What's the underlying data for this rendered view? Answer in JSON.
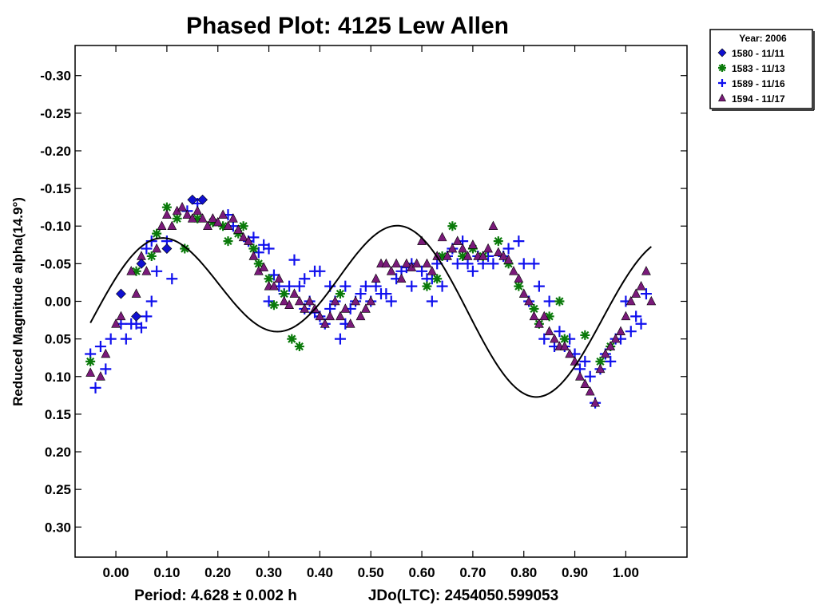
{
  "chart_data": {
    "type": "scatter",
    "title": "Phased Plot: 4125 Lew Allen",
    "ylabel": "Reduced Magnitude alpha(14.9°)",
    "xlim": [
      -0.08,
      1.12
    ],
    "ylim": [
      0.34,
      -0.34
    ],
    "y_inverted": true,
    "x_ticks": [
      0.0,
      0.1,
      0.2,
      0.3,
      0.4,
      0.5,
      0.6,
      0.7,
      0.8,
      0.9,
      1.0
    ],
    "x_tick_labels": [
      "0.00",
      "0.10",
      "0.20",
      "0.30",
      "0.40",
      "0.50",
      "0.60",
      "0.70",
      "0.80",
      "0.90",
      "1.00"
    ],
    "y_ticks": [
      -0.3,
      -0.25,
      -0.2,
      -0.15,
      -0.1,
      -0.05,
      0.0,
      0.05,
      0.1,
      0.15,
      0.2,
      0.25,
      0.3
    ],
    "y_tick_labels": [
      "-0.30",
      "-0.25",
      "-0.20",
      "-0.15",
      "-0.10",
      "-0.05",
      "0.00",
      "0.05",
      "0.10",
      "0.15",
      "0.20",
      "0.25",
      "0.30"
    ],
    "grid": false,
    "legend": {
      "placement": "top-right-outside",
      "title": "Year: 2006",
      "entries": [
        "1580 - 11/11",
        "1583 - 11/13",
        "1589 - 11/16",
        "1594 - 11/17"
      ]
    },
    "series": [
      {
        "name": "1580 - 11/11",
        "marker": "diamond",
        "color": "#1010d0",
        "points": [
          [
            0.01,
            -0.01
          ],
          [
            0.05,
            -0.05
          ],
          [
            0.1,
            -0.07
          ],
          [
            0.15,
            -0.135
          ],
          [
            0.17,
            -0.135
          ],
          [
            0.04,
            0.02
          ]
        ]
      },
      {
        "name": "1583 - 11/13",
        "marker": "asterisk",
        "color": "#0a7a0a",
        "points": [
          [
            -0.05,
            0.08
          ],
          [
            0.04,
            -0.04
          ],
          [
            0.07,
            -0.06
          ],
          [
            0.08,
            -0.09
          ],
          [
            0.1,
            -0.125
          ],
          [
            0.12,
            -0.11
          ],
          [
            0.135,
            -0.07
          ],
          [
            0.16,
            -0.11
          ],
          [
            0.19,
            -0.105
          ],
          [
            0.21,
            -0.1
          ],
          [
            0.22,
            -0.08
          ],
          [
            0.24,
            -0.09
          ],
          [
            0.25,
            -0.1
          ],
          [
            0.27,
            -0.07
          ],
          [
            0.28,
            -0.05
          ],
          [
            0.3,
            -0.03
          ],
          [
            0.31,
            0.005
          ],
          [
            0.33,
            -0.01
          ],
          [
            0.345,
            0.05
          ],
          [
            0.36,
            0.06
          ],
          [
            0.44,
            -0.01
          ],
          [
            0.61,
            -0.02
          ],
          [
            0.63,
            -0.03
          ],
          [
            0.64,
            -0.06
          ],
          [
            0.66,
            -0.1
          ],
          [
            0.68,
            -0.06
          ],
          [
            0.7,
            -0.07
          ],
          [
            0.72,
            -0.06
          ],
          [
            0.75,
            -0.08
          ],
          [
            0.77,
            -0.05
          ],
          [
            0.79,
            -0.02
          ],
          [
            0.82,
            0.01
          ],
          [
            0.83,
            0.03
          ],
          [
            0.85,
            0.02
          ],
          [
            0.87,
            0.0
          ],
          [
            0.88,
            0.05
          ],
          [
            0.92,
            0.045
          ],
          [
            0.95,
            0.08
          ],
          [
            0.97,
            0.06
          ]
        ]
      },
      {
        "name": "1589 - 11/16",
        "marker": "plus",
        "color": "#1010ee",
        "points": [
          [
            -0.05,
            0.07
          ],
          [
            -0.04,
            0.115
          ],
          [
            -0.03,
            0.06
          ],
          [
            -0.02,
            0.09
          ],
          [
            -0.01,
            0.05
          ],
          [
            0.01,
            0.03
          ],
          [
            0.02,
            0.05
          ],
          [
            0.03,
            0.03
          ],
          [
            0.04,
            0.03
          ],
          [
            0.05,
            0.035
          ],
          [
            0.06,
            0.02
          ],
          [
            0.06,
            -0.07
          ],
          [
            0.07,
            -0.08
          ],
          [
            0.07,
            0.0
          ],
          [
            0.08,
            -0.04
          ],
          [
            0.1,
            -0.08
          ],
          [
            0.11,
            -0.03
          ],
          [
            0.14,
            -0.12
          ],
          [
            0.16,
            -0.13
          ],
          [
            0.22,
            -0.115
          ],
          [
            0.23,
            -0.1
          ],
          [
            0.26,
            -0.08
          ],
          [
            0.27,
            -0.085
          ],
          [
            0.28,
            -0.065
          ],
          [
            0.29,
            -0.075
          ],
          [
            0.3,
            -0.07
          ],
          [
            0.3,
            0.0
          ],
          [
            0.31,
            -0.035
          ],
          [
            0.32,
            -0.02
          ],
          [
            0.33,
            -0.01
          ],
          [
            0.34,
            -0.02
          ],
          [
            0.35,
            -0.055
          ],
          [
            0.36,
            -0.02
          ],
          [
            0.37,
            -0.03
          ],
          [
            0.37,
            0.01
          ],
          [
            0.38,
            0.0
          ],
          [
            0.39,
            -0.04
          ],
          [
            0.39,
            0.015
          ],
          [
            0.4,
            -0.04
          ],
          [
            0.4,
            0.02
          ],
          [
            0.41,
            0.03
          ],
          [
            0.42,
            -0.02
          ],
          [
            0.42,
            0.01
          ],
          [
            0.43,
            0.0
          ],
          [
            0.44,
            0.05
          ],
          [
            0.45,
            -0.02
          ],
          [
            0.45,
            0.03
          ],
          [
            0.46,
            0.01
          ],
          [
            0.47,
            0.0
          ],
          [
            0.48,
            -0.01
          ],
          [
            0.49,
            -0.02
          ],
          [
            0.5,
            0.0
          ],
          [
            0.51,
            -0.02
          ],
          [
            0.52,
            -0.01
          ],
          [
            0.53,
            -0.01
          ],
          [
            0.54,
            0.0
          ],
          [
            0.55,
            -0.03
          ],
          [
            0.56,
            -0.04
          ],
          [
            0.57,
            -0.045
          ],
          [
            0.58,
            -0.05
          ],
          [
            0.58,
            -0.02
          ],
          [
            0.6,
            -0.04
          ],
          [
            0.61,
            -0.03
          ],
          [
            0.62,
            -0.03
          ],
          [
            0.62,
            0.0
          ],
          [
            0.63,
            -0.05
          ],
          [
            0.64,
            -0.02
          ],
          [
            0.65,
            -0.06
          ],
          [
            0.66,
            -0.07
          ],
          [
            0.67,
            -0.05
          ],
          [
            0.68,
            -0.08
          ],
          [
            0.69,
            -0.05
          ],
          [
            0.7,
            -0.04
          ],
          [
            0.71,
            -0.06
          ],
          [
            0.72,
            -0.05
          ],
          [
            0.73,
            -0.06
          ],
          [
            0.74,
            -0.05
          ],
          [
            0.76,
            -0.06
          ],
          [
            0.77,
            -0.07
          ],
          [
            0.79,
            -0.08
          ],
          [
            0.8,
            -0.05
          ],
          [
            0.81,
            0.0
          ],
          [
            0.82,
            -0.05
          ],
          [
            0.83,
            -0.02
          ],
          [
            0.84,
            0.05
          ],
          [
            0.85,
            0.0
          ],
          [
            0.86,
            0.06
          ],
          [
            0.87,
            0.04
          ],
          [
            0.88,
            0.06
          ],
          [
            0.89,
            0.05
          ],
          [
            0.9,
            0.07
          ],
          [
            0.91,
            0.09
          ],
          [
            0.92,
            0.08
          ],
          [
            0.93,
            0.1
          ],
          [
            0.94,
            0.135
          ],
          [
            0.95,
            0.09
          ],
          [
            0.96,
            0.07
          ],
          [
            0.97,
            0.08
          ],
          [
            0.98,
            0.05
          ],
          [
            0.99,
            0.05
          ],
          [
            1.0,
            0.0
          ],
          [
            1.01,
            0.04
          ],
          [
            1.02,
            0.02
          ],
          [
            1.03,
            0.03
          ],
          [
            1.04,
            -0.01
          ]
        ]
      },
      {
        "name": "1594 - 11/17",
        "marker": "triangle",
        "color": "#7a1a7a",
        "points": [
          [
            -0.05,
            0.095
          ],
          [
            -0.03,
            0.1
          ],
          [
            -0.02,
            0.07
          ],
          [
            0.0,
            0.03
          ],
          [
            0.01,
            0.02
          ],
          [
            0.03,
            -0.04
          ],
          [
            0.04,
            -0.01
          ],
          [
            0.05,
            -0.06
          ],
          [
            0.06,
            -0.04
          ],
          [
            0.08,
            -0.07
          ],
          [
            0.09,
            -0.1
          ],
          [
            0.1,
            -0.115
          ],
          [
            0.11,
            -0.1
          ],
          [
            0.12,
            -0.12
          ],
          [
            0.13,
            -0.125
          ],
          [
            0.14,
            -0.115
          ],
          [
            0.15,
            -0.11
          ],
          [
            0.16,
            -0.12
          ],
          [
            0.17,
            -0.11
          ],
          [
            0.18,
            -0.1
          ],
          [
            0.19,
            -0.11
          ],
          [
            0.2,
            -0.105
          ],
          [
            0.21,
            -0.115
          ],
          [
            0.22,
            -0.1
          ],
          [
            0.23,
            -0.11
          ],
          [
            0.24,
            -0.095
          ],
          [
            0.25,
            -0.085
          ],
          [
            0.26,
            -0.08
          ],
          [
            0.27,
            -0.06
          ],
          [
            0.28,
            -0.04
          ],
          [
            0.29,
            -0.045
          ],
          [
            0.3,
            -0.02
          ],
          [
            0.31,
            -0.02
          ],
          [
            0.32,
            -0.03
          ],
          [
            0.33,
            0.0
          ],
          [
            0.34,
            0.005
          ],
          [
            0.35,
            -0.01
          ],
          [
            0.36,
            0.0
          ],
          [
            0.37,
            0.01
          ],
          [
            0.38,
            0.0
          ],
          [
            0.39,
            0.01
          ],
          [
            0.4,
            0.02
          ],
          [
            0.41,
            0.03
          ],
          [
            0.42,
            0.02
          ],
          [
            0.43,
            0.0
          ],
          [
            0.44,
            0.02
          ],
          [
            0.45,
            0.01
          ],
          [
            0.46,
            0.03
          ],
          [
            0.47,
            0.0
          ],
          [
            0.48,
            0.02
          ],
          [
            0.49,
            0.01
          ],
          [
            0.5,
            0.0
          ],
          [
            0.51,
            -0.03
          ],
          [
            0.52,
            -0.05
          ],
          [
            0.53,
            -0.05
          ],
          [
            0.54,
            -0.04
          ],
          [
            0.55,
            -0.05
          ],
          [
            0.56,
            -0.03
          ],
          [
            0.57,
            -0.05
          ],
          [
            0.58,
            -0.045
          ],
          [
            0.59,
            -0.05
          ],
          [
            0.6,
            -0.08
          ],
          [
            0.61,
            -0.05
          ],
          [
            0.62,
            -0.04
          ],
          [
            0.63,
            -0.06
          ],
          [
            0.64,
            -0.085
          ],
          [
            0.65,
            -0.06
          ],
          [
            0.66,
            -0.07
          ],
          [
            0.67,
            -0.08
          ],
          [
            0.68,
            -0.07
          ],
          [
            0.69,
            -0.06
          ],
          [
            0.7,
            -0.075
          ],
          [
            0.71,
            -0.06
          ],
          [
            0.72,
            -0.06
          ],
          [
            0.73,
            -0.07
          ],
          [
            0.74,
            -0.1
          ],
          [
            0.75,
            -0.065
          ],
          [
            0.76,
            -0.06
          ],
          [
            0.77,
            -0.055
          ],
          [
            0.78,
            -0.04
          ],
          [
            0.79,
            -0.03
          ],
          [
            0.8,
            -0.01
          ],
          [
            0.81,
            0.0
          ],
          [
            0.82,
            0.02
          ],
          [
            0.83,
            0.03
          ],
          [
            0.84,
            0.02
          ],
          [
            0.85,
            0.04
          ],
          [
            0.86,
            0.05
          ],
          [
            0.87,
            0.06
          ],
          [
            0.88,
            0.06
          ],
          [
            0.89,
            0.07
          ],
          [
            0.9,
            0.08
          ],
          [
            0.91,
            0.1
          ],
          [
            0.92,
            0.11
          ],
          [
            0.93,
            0.12
          ],
          [
            0.94,
            0.135
          ],
          [
            0.95,
            0.09
          ],
          [
            0.96,
            0.07
          ],
          [
            0.97,
            0.06
          ],
          [
            0.98,
            0.05
          ],
          [
            0.99,
            0.04
          ],
          [
            1.0,
            0.02
          ],
          [
            1.01,
            0.0
          ],
          [
            1.02,
            -0.01
          ],
          [
            1.03,
            -0.02
          ],
          [
            1.04,
            -0.04
          ],
          [
            1.05,
            0.0
          ]
        ]
      }
    ],
    "fit_curve": {
      "type": "fourier",
      "mean": -0.003,
      "cos": [
        0.0262,
        -0.0543
      ],
      "sin": [
        -0.0356,
        -0.0675
      ],
      "range": [
        -0.05,
        1.05
      ],
      "color": "#000000"
    },
    "footer": {
      "period": "Period: 4.628 ± 0.002 h",
      "epoch": "JDo(LTC): 2454050.599053"
    }
  }
}
